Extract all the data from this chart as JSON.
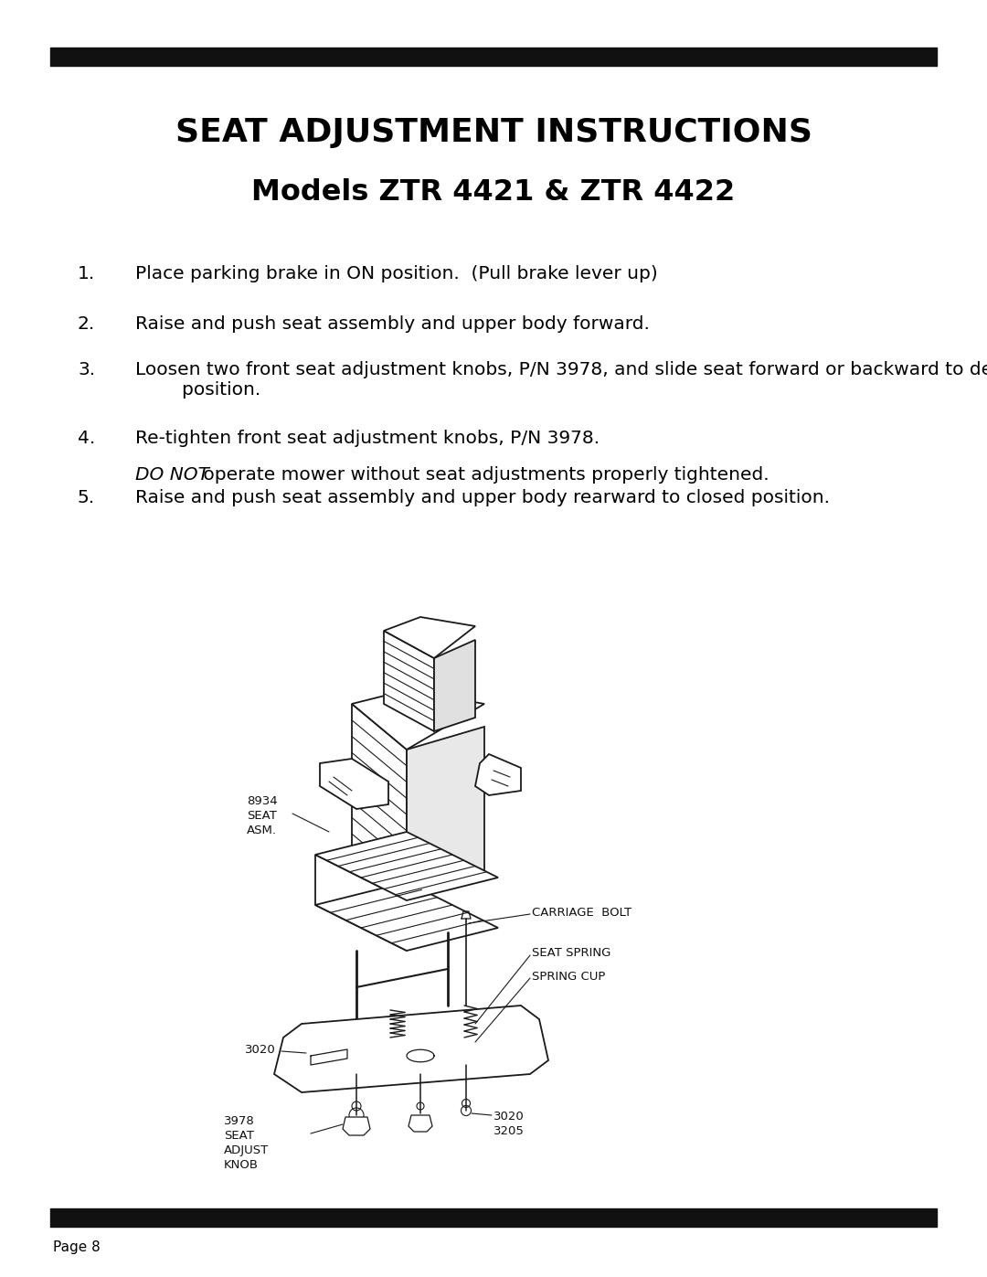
{
  "title1": "SEAT ADJUSTMENT INSTRUCTIONS",
  "title2": "Models ZTR 4421 & ZTR 4422",
  "items": [
    {
      "number": "1.",
      "text": "Place parking brake in ON position.  (Pull brake lever up)"
    },
    {
      "number": "2.",
      "text": "Raise and push seat assembly and upper body forward."
    },
    {
      "number": "3.",
      "text": "Loosen two front seat adjustment knobs, P/N 3978, and slide seat forward or backward to desired\n        position."
    },
    {
      "number": "4.",
      "text": "Re-tighten front seat adjustment knobs, P/N 3978."
    },
    {
      "number": "5.",
      "text": "Raise and push seat assembly and upper body rearward to closed position."
    }
  ],
  "do_not_italic": "DO NOT",
  "do_not_regular": " operate mower without seat adjustments properly tightened.",
  "page_label": "Page 8",
  "bg": "#ffffff",
  "fg": "#000000",
  "bar_color": "#111111"
}
